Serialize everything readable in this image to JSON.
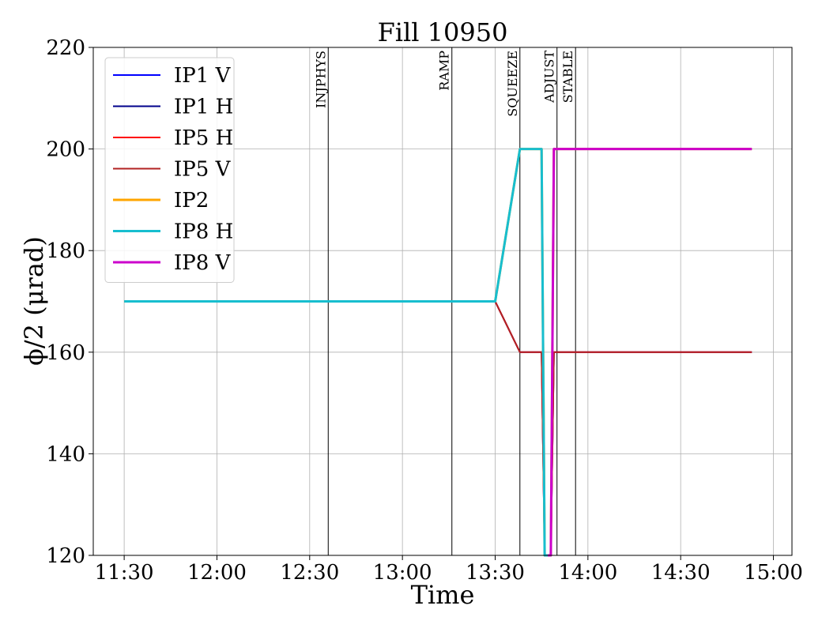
{
  "chart_data": {
    "type": "line",
    "title": "Fill 10950",
    "xlabel": "Time",
    "ylabel": "ϕ/2 (μrad)",
    "xlim": [
      "11:20",
      "15:06"
    ],
    "ylim": [
      120,
      220
    ],
    "x_ticks": [
      "11:30",
      "12:00",
      "12:30",
      "13:00",
      "13:30",
      "14:00",
      "14:30",
      "15:00"
    ],
    "y_ticks": [
      120,
      140,
      160,
      180,
      200,
      220
    ],
    "grid": true,
    "legend_position": "top-left",
    "modes": [
      {
        "label": "INJPHYS",
        "time": "12:36"
      },
      {
        "label": "RAMP",
        "time": "13:16"
      },
      {
        "label": "SQUEEZE",
        "time": "13:38"
      },
      {
        "label": "ADJUST",
        "time": "13:50"
      },
      {
        "label": "STABLE",
        "time": "13:56"
      }
    ],
    "series": [
      {
        "name": "IP1 V",
        "color": "#0000ff",
        "width": 2,
        "points": [
          [
            "11:30",
            170
          ],
          [
            "13:30",
            170
          ],
          [
            "13:38",
            160
          ],
          [
            "13:45",
            160
          ],
          [
            "13:46",
            120
          ],
          [
            "13:48",
            120
          ],
          [
            "13:49",
            160
          ],
          [
            "14:53",
            160
          ]
        ]
      },
      {
        "name": "IP1 H",
        "color": "#00008b",
        "width": 2,
        "points": [
          [
            "11:30",
            170
          ],
          [
            "13:30",
            170
          ],
          [
            "13:38",
            200
          ],
          [
            "13:45",
            200
          ],
          [
            "13:46",
            120
          ],
          [
            "13:48",
            120
          ],
          [
            "13:49",
            200
          ],
          [
            "14:53",
            200
          ]
        ]
      },
      {
        "name": "IP5 H",
        "color": "#ff0000",
        "width": 2,
        "points": [
          [
            "11:30",
            170
          ],
          [
            "13:30",
            170
          ],
          [
            "13:38",
            160
          ],
          [
            "13:45",
            160
          ],
          [
            "13:46",
            120
          ],
          [
            "13:48",
            120
          ],
          [
            "13:49",
            160
          ],
          [
            "14:53",
            160
          ]
        ]
      },
      {
        "name": "IP5 V",
        "color": "#b22222",
        "width": 2,
        "points": [
          [
            "11:30",
            170
          ],
          [
            "13:30",
            170
          ],
          [
            "13:38",
            160
          ],
          [
            "13:45",
            160
          ],
          [
            "13:46",
            120
          ],
          [
            "13:48",
            120
          ],
          [
            "13:49",
            160
          ],
          [
            "14:53",
            160
          ]
        ]
      },
      {
        "name": "IP2",
        "color": "#ffa500",
        "width": 3,
        "points": [
          [
            "11:30",
            170
          ],
          [
            "13:30",
            170
          ],
          [
            "13:38",
            200
          ],
          [
            "13:45",
            200
          ],
          [
            "13:46",
            120
          ],
          [
            "13:48",
            120
          ],
          [
            "13:49",
            200
          ],
          [
            "14:53",
            200
          ]
        ]
      },
      {
        "name": "IP8 H",
        "color": "#17becf",
        "width": 3,
        "points": [
          [
            "11:30",
            170
          ],
          [
            "13:30",
            170
          ],
          [
            "13:38",
            200
          ],
          [
            "13:45",
            200
          ],
          [
            "13:46",
            120
          ],
          [
            "13:47",
            120
          ]
        ]
      },
      {
        "name": "IP8 V",
        "color": "#cc00cc",
        "width": 3,
        "points": [
          [
            "13:47",
            120
          ],
          [
            "13:48",
            120
          ],
          [
            "13:49",
            200
          ],
          [
            "14:53",
            200
          ]
        ]
      }
    ]
  }
}
